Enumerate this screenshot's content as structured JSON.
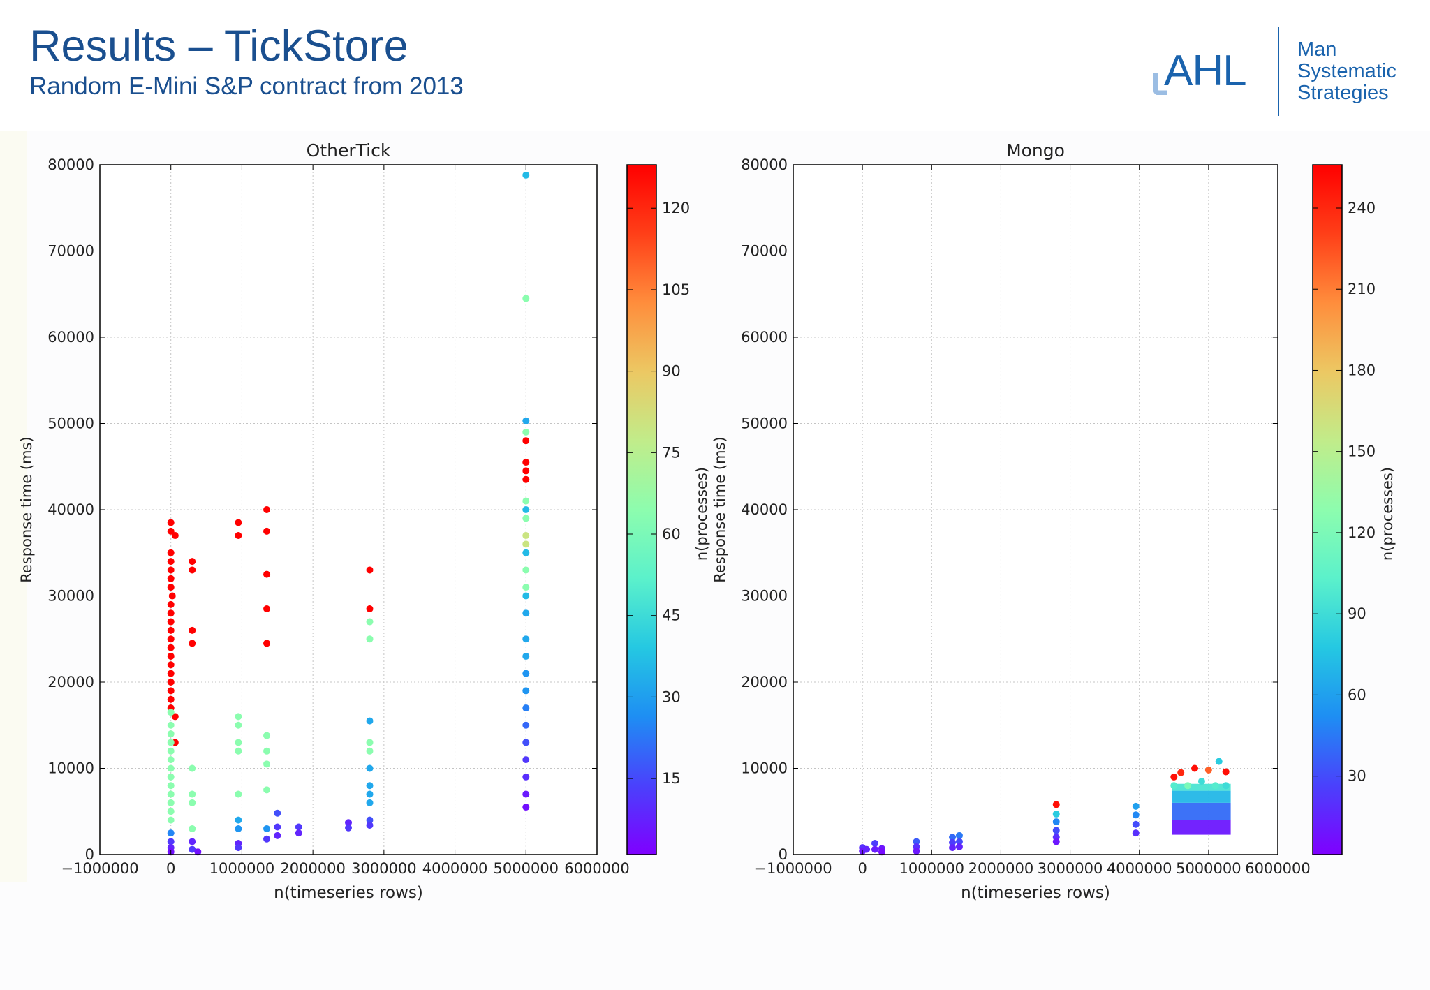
{
  "slide": {
    "title": "Results – TickStore",
    "subtitle": "Random E-Mini S&P contract from 2013"
  },
  "logo": {
    "ahl": "AHL",
    "man_lines": [
      "Man",
      "Systematic",
      "Strategies"
    ],
    "color": "#1a63ad"
  },
  "colormap": [
    "#7f00ff",
    "#4a41fc",
    "#1e8ef3",
    "#25c8e2",
    "#5bf1cb",
    "#8dfdae",
    "#c1ec8a",
    "#ecc863",
    "#ff8d3c",
    "#ff3f18",
    "#ff0000"
  ],
  "chart_data": [
    {
      "type": "scatter",
      "title": "OtherTick",
      "xlabel": "n(timeseries rows)",
      "ylabel": "Response time (ms)",
      "xlim": [
        -1000000,
        6000000
      ],
      "ylim": [
        0,
        80000
      ],
      "xticks": [
        "−1000000",
        "0",
        "1000000",
        "2000000",
        "3000000",
        "4000000",
        "5000000",
        "6000000"
      ],
      "xtick_values": [
        -1000000,
        0,
        1000000,
        2000000,
        3000000,
        4000000,
        5000000,
        6000000
      ],
      "yticks": [
        "0",
        "10000",
        "20000",
        "30000",
        "40000",
        "50000",
        "60000",
        "70000",
        "80000"
      ],
      "ytick_values": [
        0,
        10000,
        20000,
        30000,
        40000,
        50000,
        60000,
        70000,
        80000
      ],
      "grid": true,
      "colorbar": {
        "label": "n(processes)",
        "range": [
          1,
          128
        ],
        "ticks": [
          "15",
          "30",
          "45",
          "60",
          "75",
          "90",
          "105",
          "120"
        ],
        "tick_values": [
          15,
          30,
          45,
          60,
          75,
          90,
          105,
          120
        ]
      },
      "points": [
        [
          0,
          38500,
          128
        ],
        [
          0,
          37500,
          128
        ],
        [
          60000,
          37000,
          128
        ],
        [
          0,
          35000,
          128
        ],
        [
          0,
          34000,
          128
        ],
        [
          0,
          33000,
          128
        ],
        [
          0,
          32000,
          128
        ],
        [
          0,
          31000,
          128
        ],
        [
          20000,
          30000,
          128
        ],
        [
          0,
          29000,
          128
        ],
        [
          0,
          28000,
          128
        ],
        [
          0,
          27000,
          128
        ],
        [
          0,
          26000,
          128
        ],
        [
          0,
          25000,
          128
        ],
        [
          0,
          24000,
          128
        ],
        [
          0,
          23000,
          128
        ],
        [
          0,
          22000,
          128
        ],
        [
          0,
          21000,
          128
        ],
        [
          0,
          20000,
          128
        ],
        [
          0,
          19000,
          128
        ],
        [
          0,
          18000,
          128
        ],
        [
          0,
          17000,
          128
        ],
        [
          60000,
          16000,
          128
        ],
        [
          60000,
          13000,
          128
        ],
        [
          300000,
          34000,
          128
        ],
        [
          300000,
          33000,
          128
        ],
        [
          300000,
          26000,
          128
        ],
        [
          300000,
          24500,
          128
        ],
        [
          950000,
          38500,
          128
        ],
        [
          950000,
          37000,
          128
        ],
        [
          1350000,
          40000,
          128
        ],
        [
          1350000,
          37500,
          128
        ],
        [
          1350000,
          32500,
          128
        ],
        [
          1350000,
          28500,
          128
        ],
        [
          1350000,
          24500,
          128
        ],
        [
          2800000,
          33000,
          128
        ],
        [
          2800000,
          28500,
          128
        ],
        [
          5000000,
          48000,
          128
        ],
        [
          5000000,
          45500,
          128
        ],
        [
          5000000,
          44500,
          128
        ],
        [
          5000000,
          43500,
          128
        ],
        [
          0,
          16500,
          64
        ],
        [
          0,
          15000,
          64
        ],
        [
          0,
          14000,
          64
        ],
        [
          0,
          13000,
          64
        ],
        [
          0,
          12000,
          64
        ],
        [
          0,
          11000,
          64
        ],
        [
          0,
          10000,
          64
        ],
        [
          0,
          9000,
          64
        ],
        [
          0,
          8000,
          64
        ],
        [
          0,
          7000,
          64
        ],
        [
          0,
          6000,
          64
        ],
        [
          0,
          5000,
          64
        ],
        [
          0,
          4000,
          64
        ],
        [
          300000,
          10000,
          64
        ],
        [
          300000,
          7000,
          64
        ],
        [
          300000,
          6000,
          64
        ],
        [
          300000,
          3000,
          64
        ],
        [
          950000,
          16000,
          64
        ],
        [
          950000,
          15000,
          64
        ],
        [
          950000,
          13000,
          64
        ],
        [
          950000,
          12000,
          64
        ],
        [
          950000,
          7000,
          64
        ],
        [
          1350000,
          13800,
          64
        ],
        [
          1350000,
          12000,
          64
        ],
        [
          1350000,
          10500,
          64
        ],
        [
          1350000,
          7500,
          64
        ],
        [
          2800000,
          27000,
          64
        ],
        [
          2800000,
          25000,
          64
        ],
        [
          2800000,
          13000,
          64
        ],
        [
          2800000,
          12000,
          64
        ],
        [
          5000000,
          64500,
          64
        ],
        [
          5000000,
          49000,
          64
        ],
        [
          5000000,
          41000,
          64
        ],
        [
          5000000,
          39000,
          64
        ],
        [
          5000000,
          37000,
          80
        ],
        [
          5000000,
          36000,
          80
        ],
        [
          5000000,
          33000,
          64
        ],
        [
          5000000,
          31000,
          64
        ],
        [
          0,
          2500,
          25
        ],
        [
          0,
          1500,
          12
        ],
        [
          0,
          800,
          8
        ],
        [
          0,
          300,
          4
        ],
        [
          300000,
          1500,
          8
        ],
        [
          300000,
          600,
          12
        ],
        [
          380000,
          300,
          4
        ],
        [
          950000,
          4000,
          32
        ],
        [
          950000,
          3000,
          28
        ],
        [
          950000,
          1300,
          8
        ],
        [
          950000,
          800,
          12
        ],
        [
          1350000,
          3000,
          28
        ],
        [
          1350000,
          1800,
          12
        ],
        [
          1500000,
          4800,
          16
        ],
        [
          1500000,
          3200,
          12
        ],
        [
          1500000,
          2200,
          8
        ],
        [
          1800000,
          3200,
          12
        ],
        [
          1800000,
          2500,
          8
        ],
        [
          2500000,
          3700,
          8
        ],
        [
          2500000,
          3100,
          12
        ],
        [
          2800000,
          15500,
          32
        ],
        [
          2800000,
          10000,
          32
        ],
        [
          2800000,
          8000,
          32
        ],
        [
          2800000,
          7000,
          32
        ],
        [
          2800000,
          6000,
          32
        ],
        [
          2800000,
          4000,
          16
        ],
        [
          2800000,
          3400,
          12
        ],
        [
          5000000,
          78800,
          36
        ],
        [
          5000000,
          50300,
          32
        ],
        [
          5000000,
          40000,
          36
        ],
        [
          5000000,
          35000,
          36
        ],
        [
          5000000,
          30000,
          36
        ],
        [
          5000000,
          28000,
          32
        ],
        [
          5000000,
          25000,
          32
        ],
        [
          5000000,
          23000,
          32
        ],
        [
          5000000,
          21000,
          28
        ],
        [
          5000000,
          19000,
          28
        ],
        [
          5000000,
          17000,
          24
        ],
        [
          5000000,
          15000,
          20
        ],
        [
          5000000,
          13000,
          16
        ],
        [
          5000000,
          11000,
          12
        ],
        [
          5000000,
          9000,
          10
        ],
        [
          5000000,
          7000,
          6
        ],
        [
          5000000,
          5500,
          4
        ]
      ]
    },
    {
      "type": "scatter",
      "title": "Mongo",
      "xlabel": "n(timeseries rows)",
      "ylabel": "Response time (ms)",
      "xlim": [
        -1000000,
        6000000
      ],
      "ylim": [
        0,
        80000
      ],
      "xticks": [
        "−1000000",
        "0",
        "1000000",
        "2000000",
        "3000000",
        "4000000",
        "5000000",
        "6000000"
      ],
      "xtick_values": [
        -1000000,
        0,
        1000000,
        2000000,
        3000000,
        4000000,
        5000000,
        6000000
      ],
      "yticks": [
        "0",
        "10000",
        "20000",
        "30000",
        "40000",
        "50000",
        "60000",
        "70000",
        "80000"
      ],
      "ytick_values": [
        0,
        10000,
        20000,
        30000,
        40000,
        50000,
        60000,
        70000,
        80000
      ],
      "grid": true,
      "colorbar": {
        "label": "n(processes)",
        "range": [
          1,
          256
        ],
        "ticks": [
          "30",
          "60",
          "90",
          "120",
          "150",
          "180",
          "210",
          "240"
        ],
        "tick_values": [
          30,
          60,
          90,
          120,
          150,
          180,
          210,
          240
        ]
      },
      "points": [
        [
          0,
          800,
          20
        ],
        [
          0,
          400,
          10
        ],
        [
          60000,
          600,
          15
        ],
        [
          180000,
          1300,
          25
        ],
        [
          180000,
          600,
          12
        ],
        [
          280000,
          700,
          10
        ],
        [
          280000,
          300,
          5
        ],
        [
          780000,
          1500,
          35
        ],
        [
          780000,
          900,
          20
        ],
        [
          780000,
          400,
          10
        ],
        [
          1300000,
          2000,
          40
        ],
        [
          1300000,
          1400,
          25
        ],
        [
          1300000,
          800,
          15
        ],
        [
          1400000,
          2200,
          45
        ],
        [
          1400000,
          1500,
          30
        ],
        [
          1400000,
          900,
          15
        ],
        [
          2800000,
          5800,
          250
        ],
        [
          2800000,
          4700,
          80
        ],
        [
          2800000,
          3800,
          50
        ],
        [
          2800000,
          2800,
          30
        ],
        [
          2800000,
          2000,
          20
        ],
        [
          2800000,
          1500,
          10
        ],
        [
          3950000,
          5600,
          60
        ],
        [
          3950000,
          4600,
          50
        ],
        [
          3950000,
          3500,
          30
        ],
        [
          3950000,
          2500,
          20
        ],
        [
          4500000,
          9000,
          250
        ],
        [
          4600000,
          9500,
          240
        ],
        [
          4800000,
          10000,
          250
        ],
        [
          5000000,
          9800,
          220
        ],
        [
          5150000,
          10800,
          80
        ],
        [
          5250000,
          9600,
          250
        ],
        [
          4500000,
          8000,
          100
        ],
        [
          4700000,
          8000,
          120
        ],
        [
          4900000,
          8500,
          90
        ],
        [
          5100000,
          8000,
          100
        ],
        [
          5250000,
          8000,
          90
        ]
      ],
      "blocks": [
        {
          "x0": 4470000,
          "x1": 5320000,
          "y0": 2300,
          "y1": 4000,
          "v": 10
        },
        {
          "x0": 4470000,
          "x1": 5320000,
          "y0": 4000,
          "y1": 6000,
          "v": 40
        },
        {
          "x0": 4470000,
          "x1": 5320000,
          "y0": 6000,
          "y1": 7400,
          "v": 70
        },
        {
          "x0": 4470000,
          "x1": 5320000,
          "y0": 7400,
          "y1": 8200,
          "v": 95
        }
      ]
    }
  ]
}
